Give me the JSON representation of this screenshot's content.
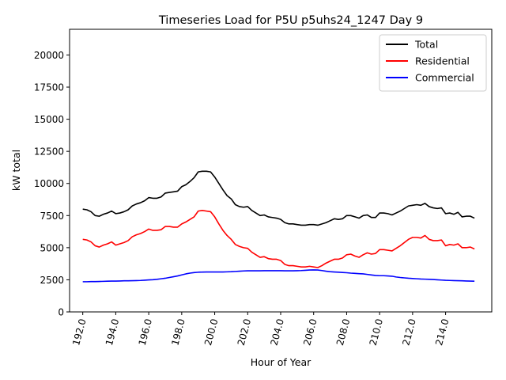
{
  "chart_data": {
    "type": "line",
    "title": "Timeseries Load for P5U p5uhs24_1247  Day 9",
    "xlabel": "Hour of Year",
    "ylabel": "kW total",
    "xlim": [
      191.2,
      216.8
    ],
    "ylim": [
      0,
      22000
    ],
    "xticks": [
      192,
      194,
      196,
      198,
      200,
      202,
      204,
      206,
      208,
      210,
      212,
      214
    ],
    "xtick_labels": [
      "192.0",
      "194.0",
      "196.0",
      "198.0",
      "200.0",
      "202.0",
      "204.0",
      "206.0",
      "208.0",
      "210.0",
      "212.0",
      "214.0"
    ],
    "yticks": [
      0,
      2500,
      5000,
      7500,
      10000,
      12500,
      15000,
      17500,
      20000
    ],
    "ytick_labels": [
      "0",
      "2500",
      "5000",
      "7500",
      "10000",
      "12500",
      "15000",
      "17500",
      "20000"
    ],
    "legend_position": "top-right",
    "x": [
      192.0,
      192.25,
      192.5,
      192.75,
      193.0,
      193.25,
      193.5,
      193.75,
      194.0,
      194.25,
      194.5,
      194.75,
      195.0,
      195.25,
      195.5,
      195.75,
      196.0,
      196.25,
      196.5,
      196.75,
      197.0,
      197.25,
      197.5,
      197.75,
      198.0,
      198.25,
      198.5,
      198.75,
      199.0,
      199.25,
      199.5,
      199.75,
      200.0,
      200.25,
      200.5,
      200.75,
      201.0,
      201.25,
      201.5,
      201.75,
      202.0,
      202.25,
      202.5,
      202.75,
      203.0,
      203.25,
      203.5,
      203.75,
      204.0,
      204.25,
      204.5,
      204.75,
      205.0,
      205.25,
      205.5,
      205.75,
      206.0,
      206.25,
      206.5,
      206.75,
      207.0,
      207.25,
      207.5,
      207.75,
      208.0,
      208.25,
      208.5,
      208.75,
      209.0,
      209.25,
      209.5,
      209.75,
      210.0,
      210.25,
      210.5,
      210.75,
      211.0,
      211.25,
      211.5,
      211.75,
      212.0,
      212.25,
      212.5,
      212.75,
      213.0,
      213.25,
      213.5,
      213.75,
      214.0,
      214.25,
      214.5,
      214.75,
      215.0,
      215.25,
      215.5,
      215.75
    ],
    "series": [
      {
        "name": "Total",
        "color": "#000000",
        "values": [
          8000,
          7950,
          7800,
          7500,
          7450,
          7600,
          7700,
          7850,
          7650,
          7700,
          7800,
          7950,
          8250,
          8400,
          8500,
          8650,
          8900,
          8850,
          8850,
          8950,
          9250,
          9300,
          9350,
          9400,
          9750,
          9900,
          10150,
          10450,
          10900,
          10950,
          10950,
          10900,
          10500,
          10000,
          9500,
          9050,
          8800,
          8350,
          8200,
          8150,
          8200,
          7900,
          7700,
          7500,
          7550,
          7400,
          7350,
          7300,
          7200,
          6950,
          6850,
          6850,
          6800,
          6750,
          6750,
          6800,
          6800,
          6750,
          6850,
          6950,
          7100,
          7250,
          7200,
          7250,
          7500,
          7500,
          7400,
          7300,
          7500,
          7550,
          7350,
          7350,
          7700,
          7700,
          7650,
          7550,
          7700,
          7850,
          8050,
          8250,
          8300,
          8350,
          8300,
          8450,
          8200,
          8100,
          8050,
          8100,
          7650,
          7700,
          7600,
          7750,
          7400,
          7450,
          7450,
          7300
        ]
      },
      {
        "name": "Residential",
        "color": "#ff0000",
        "values": [
          5650,
          5600,
          5450,
          5150,
          5050,
          5200,
          5300,
          5450,
          5200,
          5300,
          5400,
          5550,
          5850,
          6000,
          6100,
          6250,
          6450,
          6350,
          6350,
          6400,
          6650,
          6650,
          6600,
          6600,
          6850,
          7000,
          7200,
          7400,
          7850,
          7900,
          7850,
          7800,
          7400,
          6850,
          6350,
          5950,
          5650,
          5250,
          5100,
          5000,
          4950,
          4650,
          4450,
          4250,
          4300,
          4150,
          4100,
          4100,
          4000,
          3700,
          3600,
          3600,
          3550,
          3500,
          3500,
          3550,
          3500,
          3450,
          3600,
          3800,
          3950,
          4100,
          4100,
          4200,
          4450,
          4500,
          4350,
          4250,
          4450,
          4600,
          4500,
          4550,
          4850,
          4850,
          4800,
          4750,
          4950,
          5150,
          5400,
          5650,
          5800,
          5800,
          5750,
          5950,
          5650,
          5550,
          5550,
          5600,
          5150,
          5250,
          5200,
          5300,
          5000,
          5000,
          5050,
          4900
        ]
      },
      {
        "name": "Commercial",
        "color": "#0000ff",
        "values": [
          2350,
          2350,
          2360,
          2360,
          2370,
          2380,
          2390,
          2400,
          2400,
          2410,
          2420,
          2420,
          2430,
          2440,
          2450,
          2470,
          2490,
          2510,
          2540,
          2580,
          2620,
          2680,
          2740,
          2800,
          2880,
          2960,
          3020,
          3060,
          3090,
          3100,
          3110,
          3110,
          3110,
          3110,
          3110,
          3120,
          3130,
          3150,
          3170,
          3190,
          3200,
          3200,
          3200,
          3200,
          3210,
          3210,
          3210,
          3210,
          3210,
          3200,
          3200,
          3200,
          3210,
          3220,
          3240,
          3260,
          3270,
          3260,
          3220,
          3170,
          3130,
          3110,
          3090,
          3070,
          3050,
          3020,
          3000,
          2980,
          2960,
          2920,
          2880,
          2840,
          2820,
          2820,
          2800,
          2780,
          2720,
          2680,
          2650,
          2620,
          2600,
          2580,
          2560,
          2550,
          2540,
          2520,
          2500,
          2480,
          2460,
          2450,
          2440,
          2430,
          2420,
          2410,
          2400,
          2390
        ]
      }
    ]
  }
}
